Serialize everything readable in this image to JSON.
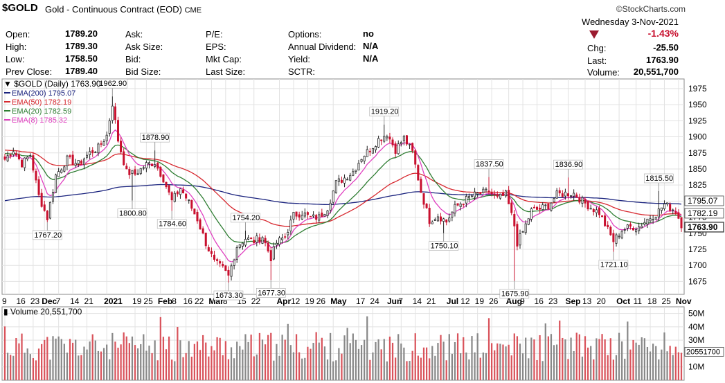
{
  "header": {
    "symbol": "$GOLD",
    "description": "Gold - Continuous Contract (EOD)",
    "exchange": "CME",
    "brand": "©StockCharts.com",
    "date": "Wednesday  3-Nov-2021"
  },
  "quote": {
    "rows": [
      {
        "l1": "Open:",
        "v1": "1789.20",
        "l2": "Ask:",
        "l3": "P/E:",
        "l4": "Options:",
        "v4": "no"
      },
      {
        "l1": "High:",
        "v1": "1789.30",
        "l2": "Ask Size:",
        "l3": "EPS:",
        "l4": "Annual Dividend:",
        "v4": "N/A"
      },
      {
        "l1": "Low:",
        "v1": "1758.50",
        "l2": "Bid:",
        "l3": "Mkt Cap:",
        "l4": "Yield:",
        "v4": "N/A"
      },
      {
        "l1": "Prev Close:",
        "v1": "1789.40",
        "l2": "Bid Size:",
        "l3": "Last Size:",
        "l4": "SCTR:",
        "v4": ""
      }
    ],
    "change_pct": "-1.43%",
    "chg_label": "Chg:",
    "chg_value": "-25.50",
    "last_label": "Last:",
    "last_value": "1763.90",
    "volume_label": "Volume:",
    "volume_value": "20,551,700",
    "down_color": "#9b1b30"
  },
  "chart_data": [
    {
      "type": "candlestick",
      "title": "$GOLD (Daily) 1763.90",
      "legend": [
        {
          "name": "EMA(200) 1795.07",
          "color": "#1a237e"
        },
        {
          "name": "EMA(50) 1782.19",
          "color": "#d7282f"
        },
        {
          "name": "EMA(20) 1782.59",
          "color": "#2e7d32"
        },
        {
          "name": "EMA(8) 1785.32",
          "color": "#e040c0"
        }
      ],
      "y_ticks": [
        1675,
        1700,
        1725,
        1750,
        1775,
        1800,
        1825,
        1850,
        1875,
        1900,
        1925,
        1950,
        1975
      ],
      "ylim": [
        1655,
        1990
      ],
      "right_labels": [
        {
          "text": "1795.07",
          "value": 1795.07
        },
        {
          "text": "1782.19",
          "value": 1782.19
        },
        {
          "text": "1763.90",
          "value": 1763.9,
          "highlight": true
        }
      ],
      "x_ticks": [
        {
          "label": "9",
          "i": 0
        },
        {
          "label": "16",
          "i": 5
        },
        {
          "label": "23",
          "i": 10
        },
        {
          "label": "Dec",
          "i": 14,
          "bold": true
        },
        {
          "label": "7",
          "i": 19
        },
        {
          "label": "14",
          "i": 24
        },
        {
          "label": "21",
          "i": 29
        },
        {
          "label": "2021",
          "i": 36,
          "bold": true
        },
        {
          "label": "19",
          "i": 46
        },
        {
          "label": "25",
          "i": 50
        },
        {
          "label": "Feb",
          "i": 55,
          "bold": true
        },
        {
          "label": "8",
          "i": 60
        },
        {
          "label": "16",
          "i": 64
        },
        {
          "label": "22",
          "i": 68
        },
        {
          "label": "Mar",
          "i": 73,
          "bold": true
        },
        {
          "label": "8",
          "i": 78
        },
        {
          "label": "15",
          "i": 83
        },
        {
          "label": "22",
          "i": 88
        },
        {
          "label": "Apr",
          "i": 97,
          "bold": true
        },
        {
          "label": "12",
          "i": 102
        },
        {
          "label": "19",
          "i": 107
        },
        {
          "label": "26",
          "i": 111
        },
        {
          "label": "May",
          "i": 116,
          "bold": true
        },
        {
          "label": "17",
          "i": 125
        },
        {
          "label": "24",
          "i": 130
        },
        {
          "label": "Jun",
          "i": 136,
          "bold": true
        },
        {
          "label": "7",
          "i": 140
        },
        {
          "label": "14",
          "i": 145
        },
        {
          "label": "21",
          "i": 150
        },
        {
          "label": "Jul",
          "i": 157,
          "bold": true
        },
        {
          "label": "12",
          "i": 162
        },
        {
          "label": "19",
          "i": 167
        },
        {
          "label": "26",
          "i": 172
        },
        {
          "label": "Aug",
          "i": 178,
          "bold": true
        },
        {
          "label": "9",
          "i": 183
        },
        {
          "label": "16",
          "i": 188
        },
        {
          "label": "23",
          "i": 193
        },
        {
          "label": "Sep",
          "i": 199,
          "bold": true
        },
        {
          "label": "13",
          "i": 205
        },
        {
          "label": "20",
          "i": 210
        },
        {
          "label": "Oct",
          "i": 217,
          "bold": true
        },
        {
          "label": "11",
          "i": 223
        },
        {
          "label": "18",
          "i": 228
        },
        {
          "label": "25",
          "i": 233
        },
        {
          "label": "Nov",
          "i": 238,
          "bold": true
        }
      ],
      "annotations": [
        {
          "text": "1767.20",
          "i": 15,
          "value": 1767.2,
          "pos": "below"
        },
        {
          "text": "1962.90",
          "i": 38,
          "value": 1962.9,
          "pos": "above"
        },
        {
          "text": "1800.80",
          "i": 45,
          "value": 1800.8,
          "pos": "below"
        },
        {
          "text": "1878.90",
          "i": 53,
          "value": 1878.9,
          "pos": "above"
        },
        {
          "text": "1784.60",
          "i": 59,
          "value": 1784.6,
          "pos": "below"
        },
        {
          "text": "1754.20",
          "i": 85,
          "value": 1754.2,
          "pos": "above"
        },
        {
          "text": "1673.30",
          "i": 79,
          "value": 1673.3,
          "pos": "below"
        },
        {
          "text": "1677.30",
          "i": 94,
          "value": 1677.3,
          "pos": "below"
        },
        {
          "text": "1919.20",
          "i": 134,
          "value": 1919.2,
          "pos": "above"
        },
        {
          "text": "1750.10",
          "i": 155,
          "value": 1750.1,
          "pos": "below"
        },
        {
          "text": "1837.50",
          "i": 171,
          "value": 1837.5,
          "pos": "above"
        },
        {
          "text": "1675.90",
          "i": 180,
          "value": 1675.9,
          "pos": "below"
        },
        {
          "text": "1836.90",
          "i": 199,
          "value": 1836.9,
          "pos": "above"
        },
        {
          "text": "1721.10",
          "i": 215,
          "value": 1721.1,
          "pos": "below"
        },
        {
          "text": "1815.50",
          "i": 231,
          "value": 1815.5,
          "pos": "above"
        }
      ],
      "price_anchors": [
        [
          0,
          1865
        ],
        [
          3,
          1880
        ],
        [
          6,
          1858
        ],
        [
          9,
          1872
        ],
        [
          12,
          1808
        ],
        [
          15,
          1774
        ],
        [
          18,
          1840
        ],
        [
          22,
          1865
        ],
        [
          26,
          1858
        ],
        [
          30,
          1875
        ],
        [
          33,
          1883
        ],
        [
          36,
          1902
        ],
        [
          38,
          1952
        ],
        [
          40,
          1895
        ],
        [
          43,
          1845
        ],
        [
          46,
          1842
        ],
        [
          50,
          1857
        ],
        [
          53,
          1860
        ],
        [
          56,
          1835
        ],
        [
          59,
          1800
        ],
        [
          62,
          1820
        ],
        [
          65,
          1798
        ],
        [
          68,
          1772
        ],
        [
          71,
          1735
        ],
        [
          74,
          1705
        ],
        [
          77,
          1695
        ],
        [
          79,
          1683
        ],
        [
          82,
          1730
        ],
        [
          85,
          1742
        ],
        [
          88,
          1738
        ],
        [
          91,
          1745
        ],
        [
          94,
          1712
        ],
        [
          96,
          1735
        ],
        [
          99,
          1745
        ],
        [
          102,
          1778
        ],
        [
          105,
          1782
        ],
        [
          108,
          1774
        ],
        [
          111,
          1775
        ],
        [
          114,
          1790
        ],
        [
          117,
          1828
        ],
        [
          120,
          1836
        ],
        [
          123,
          1846
        ],
        [
          126,
          1868
        ],
        [
          129,
          1881
        ],
        [
          132,
          1896
        ],
        [
          135,
          1905
        ],
        [
          138,
          1880
        ],
        [
          141,
          1898
        ],
        [
          144,
          1876
        ],
        [
          147,
          1815
        ],
        [
          150,
          1770
        ],
        [
          153,
          1778
        ],
        [
          156,
          1768
        ],
        [
          159,
          1790
        ],
        [
          162,
          1800
        ],
        [
          165,
          1808
        ],
        [
          168,
          1812
        ],
        [
          171,
          1815
        ],
        [
          174,
          1804
        ],
        [
          177,
          1810
        ],
        [
          180,
          1762
        ],
        [
          181,
          1735
        ],
        [
          183,
          1752
        ],
        [
          186,
          1785
        ],
        [
          189,
          1788
        ],
        [
          192,
          1793
        ],
        [
          195,
          1810
        ],
        [
          198,
          1812
        ],
        [
          201,
          1812
        ],
        [
          204,
          1800
        ],
        [
          207,
          1790
        ],
        [
          210,
          1782
        ],
        [
          213,
          1755
        ],
        [
          215,
          1738
        ],
        [
          218,
          1755
        ],
        [
          221,
          1760
        ],
        [
          224,
          1760
        ],
        [
          227,
          1772
        ],
        [
          230,
          1780
        ],
        [
          233,
          1795
        ],
        [
          235,
          1790
        ],
        [
          237,
          1785
        ],
        [
          239,
          1764
        ]
      ],
      "n": 240
    },
    {
      "type": "bar",
      "title": "Volume 20,551,700",
      "y_ticks": [
        10000000,
        20000000,
        30000000,
        40000000,
        50000000
      ],
      "y_tick_labels": [
        "10M",
        "20M",
        "30M",
        "40M",
        "50M"
      ],
      "ylim": [
        0,
        55000000
      ],
      "last_label": "20551700",
      "last_value": 20551700
    }
  ]
}
